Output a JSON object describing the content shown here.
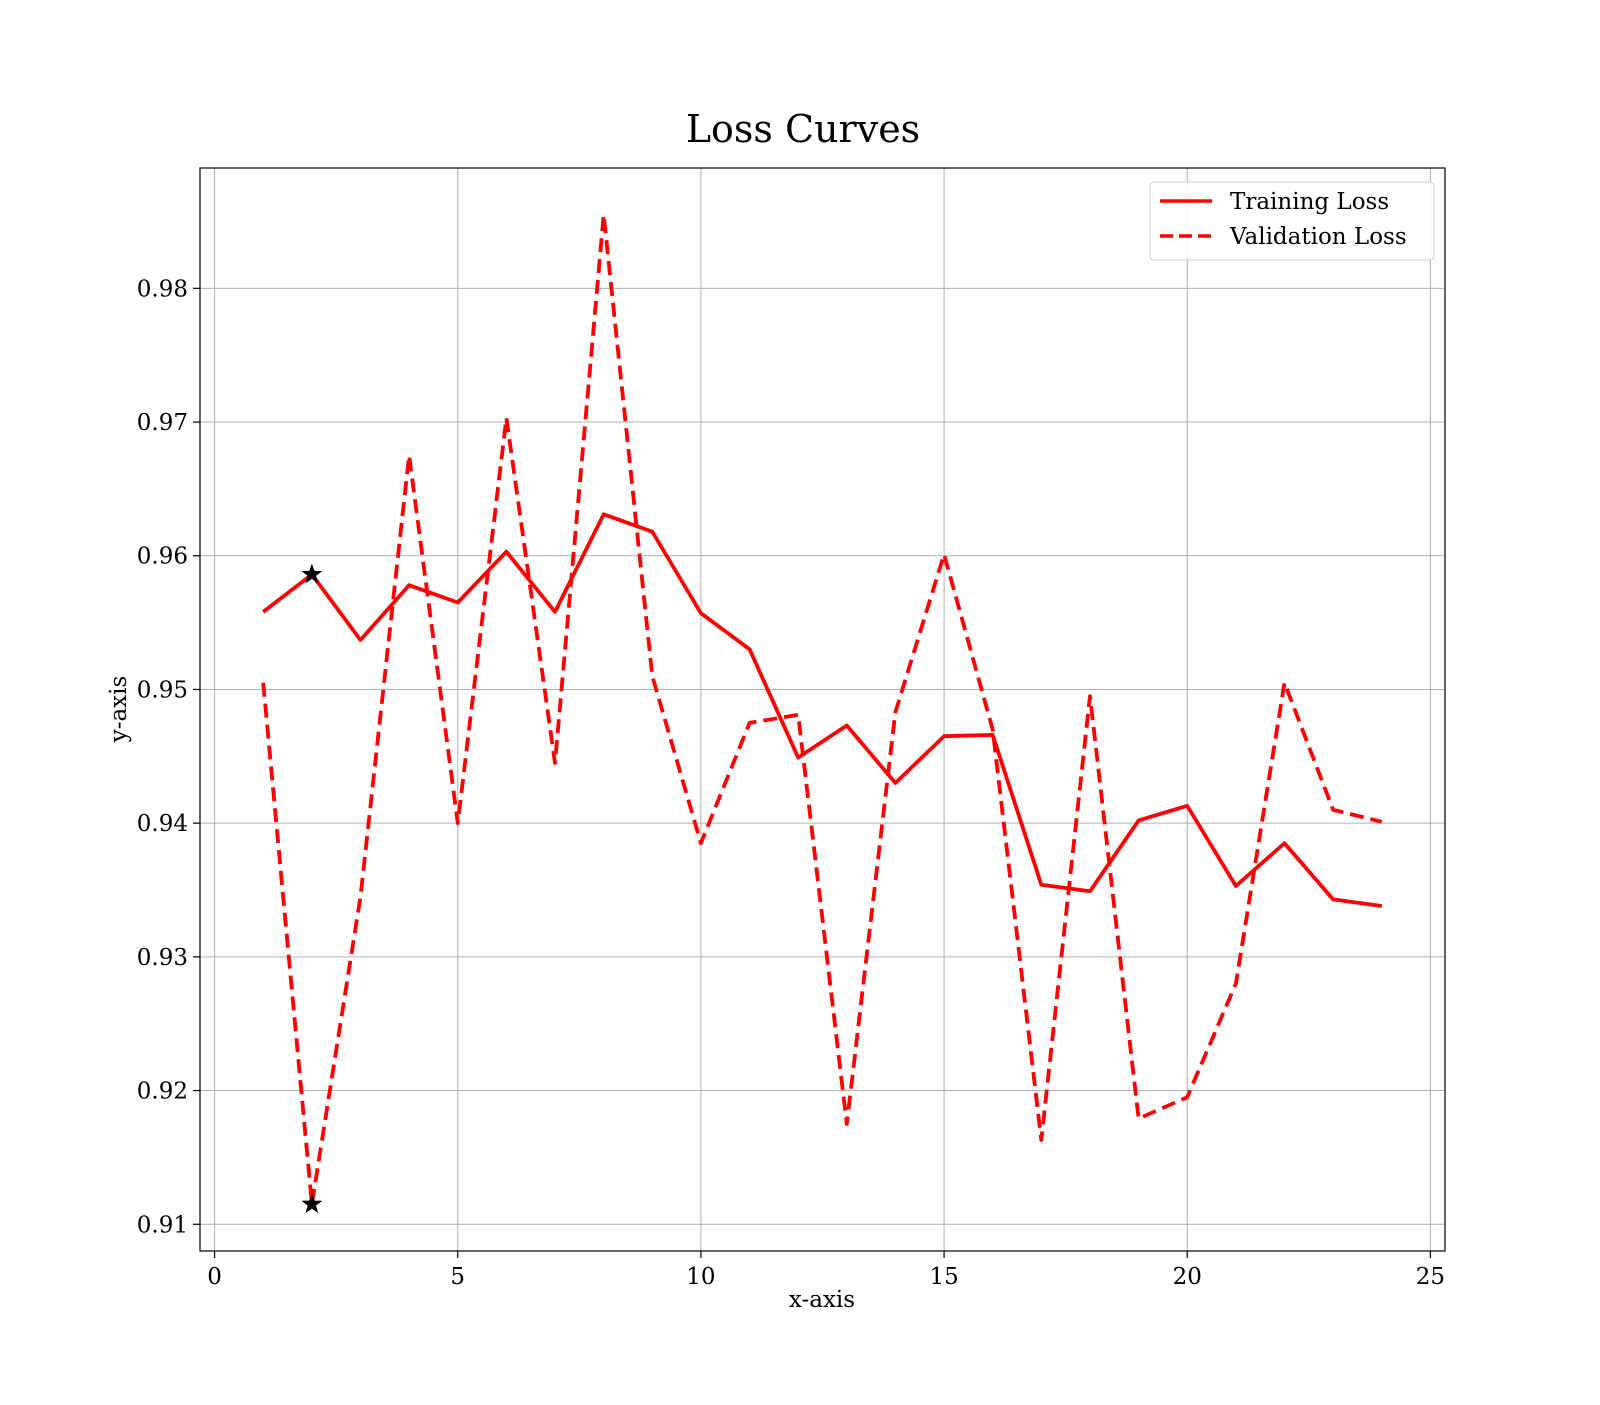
{
  "chart_data": {
    "type": "line",
    "title": "Loss Curves",
    "xlabel": "x-axis",
    "ylabel": "y-axis",
    "xlim": [
      -0.3,
      25.3
    ],
    "ylim": [
      0.908,
      0.989
    ],
    "xticks": [
      0,
      5,
      10,
      15,
      20,
      25
    ],
    "xtick_labels": [
      "0",
      "5",
      "10",
      "15",
      "20",
      "25"
    ],
    "yticks": [
      0.91,
      0.92,
      0.93,
      0.94,
      0.95,
      0.96,
      0.97,
      0.98
    ],
    "ytick_labels": [
      "0.91",
      "0.92",
      "0.93",
      "0.94",
      "0.95",
      "0.96",
      "0.97",
      "0.98"
    ],
    "grid": true,
    "legend_position": "top-right",
    "x": [
      1,
      2,
      3,
      4,
      5,
      6,
      7,
      8,
      9,
      10,
      11,
      12,
      13,
      14,
      15,
      16,
      17,
      18,
      19,
      20,
      21,
      22,
      23,
      24
    ],
    "series": [
      {
        "name": "Training Loss",
        "style": "solid",
        "color": "#ff0000",
        "values": [
          0.9558,
          0.9586,
          0.9537,
          0.9578,
          0.9565,
          0.9603,
          0.9558,
          0.9631,
          0.9618,
          0.9557,
          0.953,
          0.9449,
          0.9473,
          0.943,
          0.9465,
          0.9466,
          0.9354,
          0.9349,
          0.9402,
          0.9413,
          0.9353,
          0.9385,
          0.9343,
          0.9338
        ],
        "marker_point": {
          "x": 2,
          "y": 0.9586
        }
      },
      {
        "name": "Validation Loss",
        "style": "dashed",
        "color": "#ff0000",
        "values": [
          0.9505,
          0.9115,
          0.9345,
          0.9675,
          0.94,
          0.9703,
          0.9445,
          0.9855,
          0.951,
          0.9385,
          0.9475,
          0.9481,
          0.9175,
          0.9483,
          0.9601,
          0.947,
          0.9163,
          0.9495,
          0.9179,
          0.9195,
          0.928,
          0.9505,
          0.941,
          0.9401
        ],
        "marker_point": {
          "x": 2,
          "y": 0.9115
        }
      }
    ]
  }
}
